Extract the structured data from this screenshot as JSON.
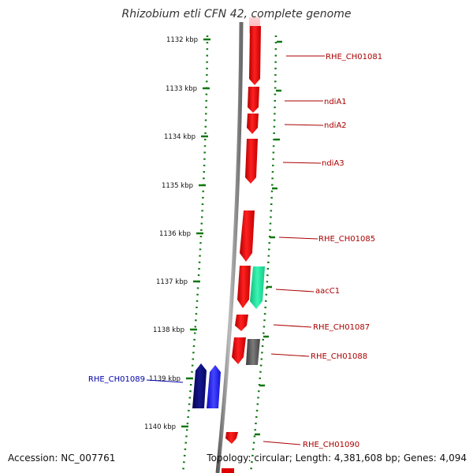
{
  "title": "Rhizobium etli CFN 42, complete genome",
  "accession": "Accession: NC_007761",
  "stats": "Topology: circular; Length: 4,381,608 bp; Genes: 4,094",
  "colors": {
    "forward_gene": "#dd0000",
    "rna_gene": "#19e89a",
    "pseudo_gene": "#555555",
    "reverse_gene_dark": "#0a0a6e",
    "reverse_gene_light": "#1c1cf0",
    "ruler_ticks": "#117711",
    "label_forward": "#aa0000",
    "label_reverse": "#0000aa",
    "backbone": "#8a8a8a"
  },
  "ruler": {
    "unit": "kbp",
    "ticks": [
      {
        "label": "1132 kbp"
      },
      {
        "label": "1133 kbp"
      },
      {
        "label": "1134 kbp"
      },
      {
        "label": "1135 kbp"
      },
      {
        "label": "1136 kbp"
      },
      {
        "label": "1137 kbp"
      },
      {
        "label": "1138 kbp"
      },
      {
        "label": "1139 kbp"
      },
      {
        "label": "1140 kbp"
      }
    ]
  },
  "genes": [
    {
      "name": "RHE_CH01081",
      "strand": "+",
      "kind": "gene"
    },
    {
      "name": "ndiA1",
      "strand": "+",
      "kind": "gene"
    },
    {
      "name": "ndiA2",
      "strand": "+",
      "kind": "gene"
    },
    {
      "name": "ndiA3",
      "strand": "+",
      "kind": "gene"
    },
    {
      "name": "RHE_CH01085",
      "strand": "+",
      "kind": "gene"
    },
    {
      "name": "aacC1",
      "strand": "+",
      "kind": "rna"
    },
    {
      "name": "RHE_CH01087",
      "strand": "+",
      "kind": "gene"
    },
    {
      "name": "RHE_CH01088",
      "strand": "+",
      "kind": "pseudo"
    },
    {
      "name": "RHE_CH01089",
      "strand": "-",
      "kind": "gene"
    },
    {
      "name": "RHE_CH01090",
      "strand": "+",
      "kind": "gene"
    }
  ]
}
